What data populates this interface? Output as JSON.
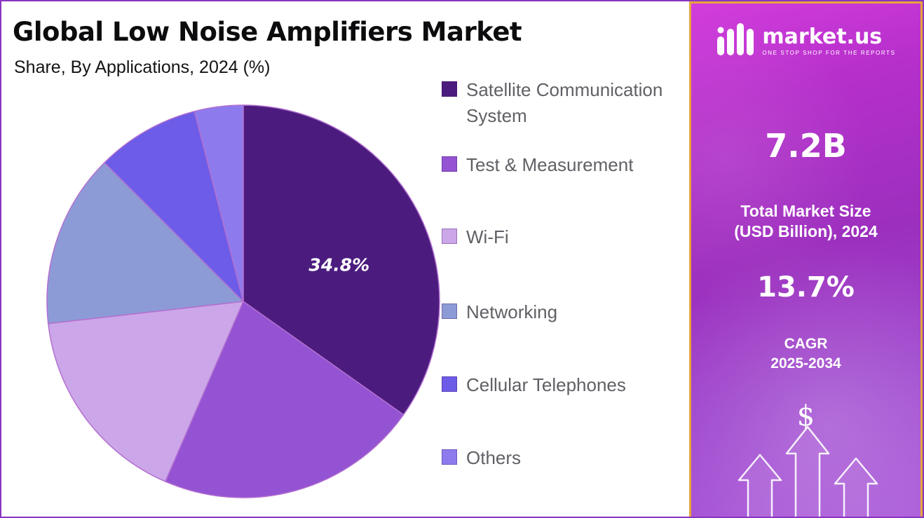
{
  "header": {
    "title": "Global Low Noise Amplifiers Market",
    "subtitle": "Share, By Applications, 2024 (%)"
  },
  "chart_data": {
    "type": "pie",
    "title": "Global Low Noise Amplifiers Market",
    "subtitle": "Share, By Applications, 2024 (%)",
    "labels": [
      "Satellite Communication System",
      "Test & Measurement",
      "Wi-Fi",
      "Networking",
      "Cellular Telephones",
      "Others"
    ],
    "values": [
      34.8,
      21.7,
      16.7,
      14.3,
      8.5,
      4.0
    ],
    "colors": [
      "#4b1c7e",
      "#9353d3",
      "#cba6e8",
      "#8c9bd6",
      "#6c5ce7",
      "#8d7bee"
    ],
    "slice_stroke": "#b36fd0",
    "legend_position": "right",
    "start_angle": "top",
    "direction": "clockwise",
    "annotations": [
      {
        "slice": 0,
        "text": "34.8%"
      }
    ]
  },
  "side_panel": {
    "brand_name": "market.us",
    "brand_tagline": "ONE STOP SHOP FOR THE REPORTS",
    "market_size_value": "7.2B",
    "market_size_label_line1": "Total Market Size",
    "market_size_label_line2": "(USD Billion), 2024",
    "cagr_value": "13.7%",
    "cagr_label_line1": "CAGR",
    "cagr_label_line2": "2025-2034",
    "dollar_symbol": "$"
  },
  "colors": {
    "panel_border": "#e8a43c",
    "panel_gradient_top": "#d23ddc",
    "panel_gradient_bottom": "#aa59d9",
    "outer_border": "#8a35c0",
    "title_text": "#0c0c0e",
    "legend_text": "#606066",
    "slice_label_text": "#ffffff"
  }
}
